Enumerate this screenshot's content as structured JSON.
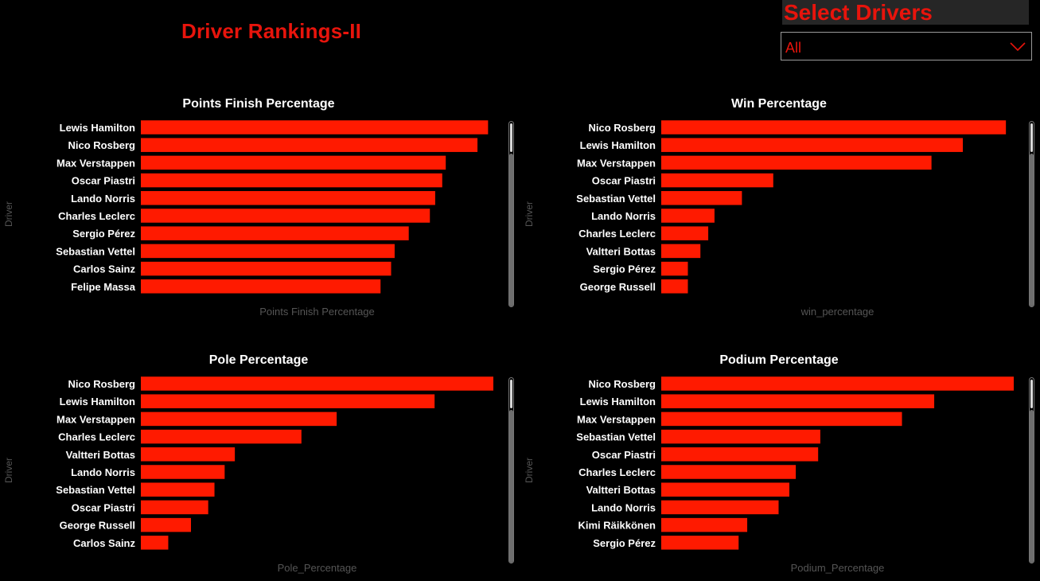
{
  "page": {
    "title": "Driver Rankings-II",
    "accent_color": "#E8140C"
  },
  "slicer": {
    "title": "Select Drivers",
    "selected": "All",
    "icon": "chevron-down-icon"
  },
  "chart_data": [
    {
      "type": "bar",
      "orientation": "horizontal",
      "title": "Points Finish Percentage",
      "ylabel": "Driver",
      "xlabel": "Points Finish Percentage",
      "categories": [
        "Lewis Hamilton",
        "Nico Rosberg",
        "Max Verstappen",
        "Oscar Piastri",
        "Lando Norris",
        "Charles Leclerc",
        "Sergio Pérez",
        "Sebastian Vettel",
        "Carlos Sainz",
        "Felipe Massa"
      ],
      "values": [
        0.985,
        0.955,
        0.865,
        0.855,
        0.835,
        0.82,
        0.76,
        0.72,
        0.71,
        0.68
      ],
      "xlim": [
        0,
        1.0
      ],
      "color": "#FF1A00"
    },
    {
      "type": "bar",
      "orientation": "horizontal",
      "title": "Win Percentage",
      "ylabel": "Driver",
      "xlabel": "win_percentage",
      "categories": [
        "Nico Rosberg",
        "Lewis Hamilton",
        "Max Verstappen",
        "Oscar Piastri",
        "Sebastian Vettel",
        "Lando Norris",
        "Charles Leclerc",
        "Valtteri Bottas",
        "Sergio Pérez",
        "George Russell"
      ],
      "values": [
        0.44,
        0.385,
        0.345,
        0.143,
        0.103,
        0.068,
        0.06,
        0.05,
        0.034,
        0.034
      ],
      "xlim": [
        0,
        0.45
      ],
      "color": "#FF1A00"
    },
    {
      "type": "bar",
      "orientation": "horizontal",
      "title": "Pole Percentage",
      "ylabel": "Driver",
      "xlabel": "Pole_Percentage",
      "categories": [
        "Nico Rosberg",
        "Lewis Hamilton",
        "Max Verstappen",
        "Charles Leclerc",
        "Valtteri Bottas",
        "Lando Norris",
        "Sebastian Vettel",
        "Oscar Piastri",
        "George Russell",
        "Carlos Sainz"
      ],
      "values": [
        0.45,
        0.375,
        0.25,
        0.205,
        0.12,
        0.107,
        0.094,
        0.086,
        0.064,
        0.035
      ],
      "xlim": [
        0,
        0.45
      ],
      "color": "#FF1A00"
    },
    {
      "type": "bar",
      "orientation": "horizontal",
      "title": "Podium Percentage",
      "ylabel": "Driver",
      "xlabel": "Podium_Percentage",
      "categories": [
        "Nico Rosberg",
        "Lewis Hamilton",
        "Max Verstappen",
        "Sebastian Vettel",
        "Oscar Piastri",
        "Charles Leclerc",
        "Valtteri Bottas",
        "Lando Norris",
        "Kimi Räikkönen",
        "Sergio Pérez"
      ],
      "values": [
        0.82,
        0.635,
        0.56,
        0.37,
        0.365,
        0.313,
        0.298,
        0.273,
        0.2,
        0.18
      ],
      "xlim": [
        0,
        0.82
      ],
      "color": "#FF1A00"
    }
  ]
}
